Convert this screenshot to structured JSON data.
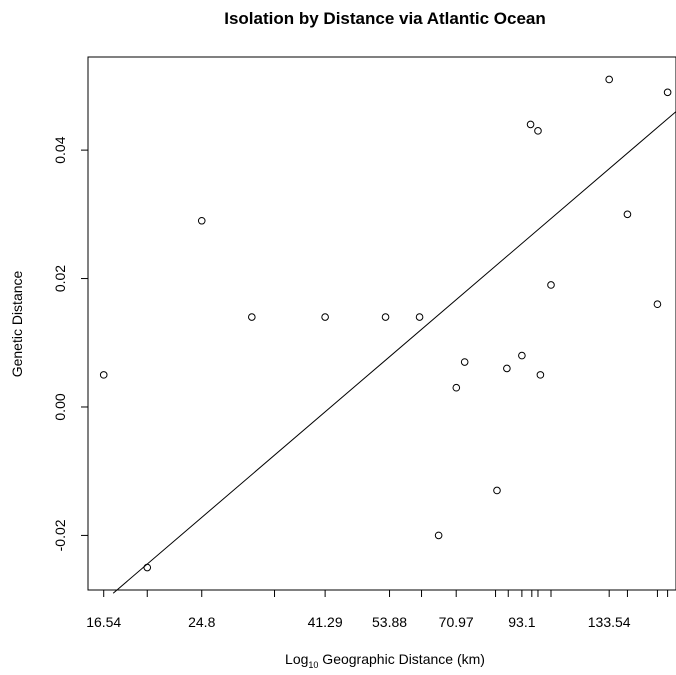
{
  "chart_data": {
    "type": "scatter",
    "title": "Isolation by Distance via Atlantic Ocean",
    "xlabel_main": "Log",
    "xlabel_sub": "10",
    "xlabel_rest": " Geographic Distance (km)",
    "ylabel": "Genetic Distance",
    "x_scale": "log10",
    "x_tick_labels": [
      "16.54",
      "24.8",
      "41.29",
      "53.88",
      "70.97",
      "93.1",
      "133.54"
    ],
    "x_ticks": [
      16.54,
      19.8,
      24.8,
      33.5,
      41.29,
      53.88,
      61.5,
      70.97,
      83.5,
      88.0,
      93.1,
      97.0,
      99.5,
      105.0,
      133.54,
      144.0,
      163.0,
      170.0
    ],
    "y_ticks": [
      -0.02,
      0.0,
      0.02,
      0.04
    ],
    "y_tick_labels": [
      "-0.02",
      "0.00",
      "0.02",
      "0.04"
    ],
    "xlim": [
      15.5,
      176
    ],
    "ylim": [
      -0.0285,
      0.0545
    ],
    "points": [
      {
        "x": 16.54,
        "y": 0.005
      },
      {
        "x": 19.8,
        "y": -0.025
      },
      {
        "x": 24.8,
        "y": 0.029
      },
      {
        "x": 30.5,
        "y": 0.014
      },
      {
        "x": 41.29,
        "y": 0.014
      },
      {
        "x": 53.0,
        "y": 0.014
      },
      {
        "x": 61.0,
        "y": 0.014
      },
      {
        "x": 66.0,
        "y": -0.02
      },
      {
        "x": 71.0,
        "y": 0.003
      },
      {
        "x": 73.5,
        "y": 0.007
      },
      {
        "x": 84.0,
        "y": -0.013
      },
      {
        "x": 87.5,
        "y": 0.006
      },
      {
        "x": 93.1,
        "y": 0.008
      },
      {
        "x": 96.5,
        "y": 0.044
      },
      {
        "x": 99.5,
        "y": 0.043
      },
      {
        "x": 100.5,
        "y": 0.005
      },
      {
        "x": 105.0,
        "y": 0.019
      },
      {
        "x": 133.54,
        "y": 0.051
      },
      {
        "x": 144.0,
        "y": 0.03
      },
      {
        "x": 163.0,
        "y": 0.016
      },
      {
        "x": 170.0,
        "y": 0.049
      }
    ],
    "fit_line": {
      "x": [
        17.2,
        176
      ],
      "y": [
        -0.029,
        0.046
      ]
    },
    "grid": false,
    "legend": "none"
  }
}
